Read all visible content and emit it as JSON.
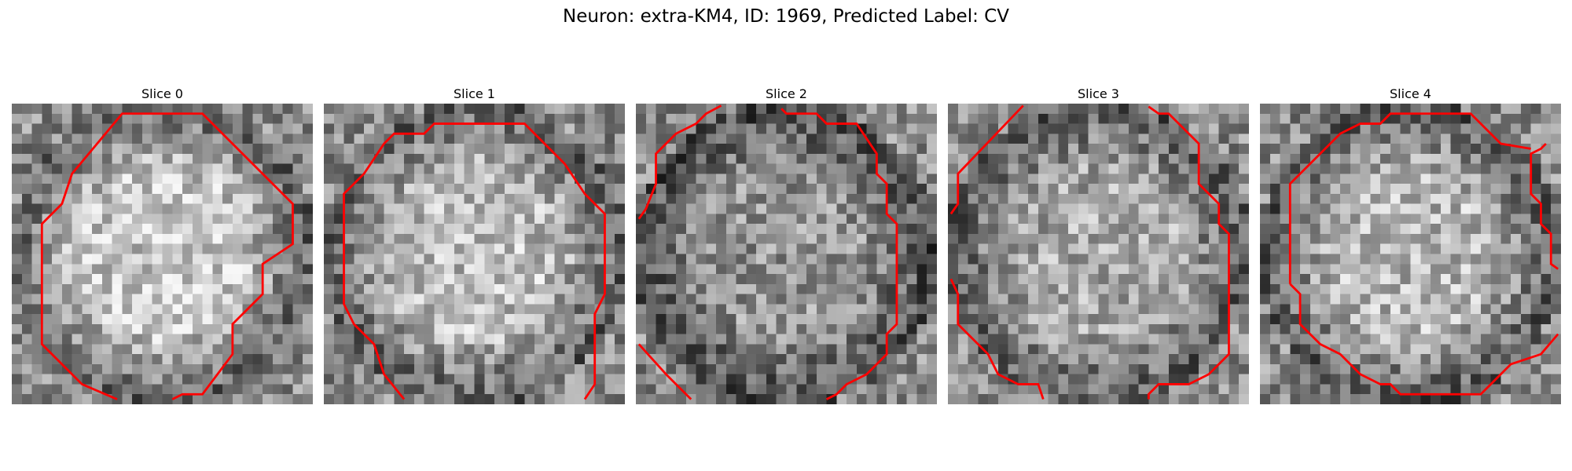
{
  "figure": {
    "title": "Neuron: extra-KM4, ID: 1969, Predicted Label: CV"
  },
  "panels": [
    {
      "title": "Slice 0",
      "seed": 11,
      "center_bright": 0.78,
      "edge_dark": 0.4
    },
    {
      "title": "Slice 1",
      "seed": 23,
      "center_bright": 0.74,
      "edge_dark": 0.38
    },
    {
      "title": "Slice 2",
      "seed": 37,
      "center_bright": 0.58,
      "edge_dark": 0.3
    },
    {
      "title": "Slice 3",
      "seed": 51,
      "center_bright": 0.66,
      "edge_dark": 0.36
    },
    {
      "title": "Slice 4",
      "seed": 67,
      "center_bright": 0.72,
      "edge_dark": 0.35
    }
  ],
  "colors": {
    "contour": "#ff0000",
    "background": "#ffffff"
  }
}
